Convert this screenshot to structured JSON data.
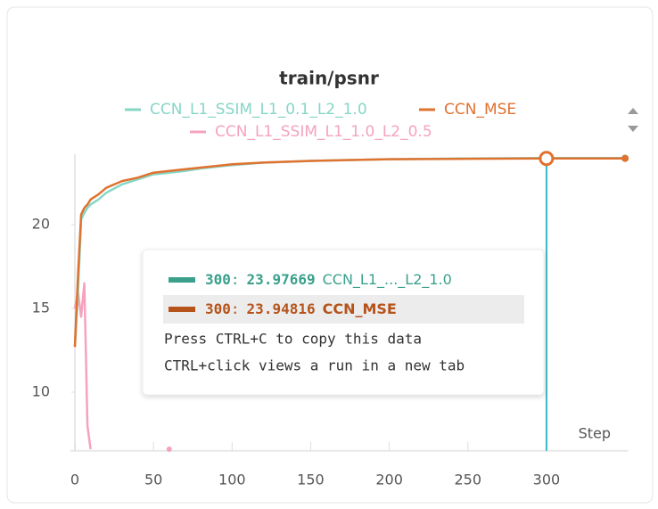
{
  "chart_data": {
    "type": "line",
    "title": "train/psnr",
    "x_label": "Step",
    "x": [
      0,
      2,
      4,
      6,
      8,
      10,
      15,
      20,
      30,
      40,
      50,
      60,
      70,
      80,
      100,
      120,
      150,
      200,
      250,
      300,
      340,
      350
    ],
    "series": [
      {
        "name": "CCN_L1_SSIM_L1_0.1_L2_1.0",
        "color": "#86d6c6",
        "values": [
          12.7,
          16.0,
          20.3,
          20.7,
          21.0,
          21.2,
          21.5,
          21.9,
          22.4,
          22.7,
          23.0,
          23.1,
          23.2,
          23.35,
          23.55,
          23.7,
          23.8,
          23.9,
          23.95,
          23.97669,
          23.97,
          23.97
        ]
      },
      {
        "name": "CCN_MSE",
        "color": "#e07230",
        "values": [
          12.7,
          17.0,
          20.6,
          21.0,
          21.2,
          21.5,
          21.8,
          22.2,
          22.6,
          22.8,
          23.1,
          23.2,
          23.3,
          23.4,
          23.6,
          23.7,
          23.8,
          23.9,
          23.93,
          23.94816,
          23.95,
          23.95
        ]
      },
      {
        "name": "CCN_L1_SSIM_L1_1.0_L2_0.5",
        "color": "#f5a3bd",
        "values": [
          15.0,
          16.0,
          14.5,
          16.5,
          8.0,
          6.6,
          null,
          null,
          null,
          null,
          null,
          6.6,
          null,
          null,
          null,
          null,
          null,
          null,
          null,
          null,
          null,
          null
        ]
      }
    ],
    "xlim": [
      -3,
      352
    ],
    "ylim": [
      6.5,
      24.2
    ],
    "xticks": [
      0,
      50,
      100,
      150,
      200,
      250,
      300
    ],
    "yticks": [
      10,
      15,
      20
    ],
    "grid": false,
    "tooltip": {
      "step": 300,
      "separator": ":",
      "labels": [
        "CCN_L1_..._L2_1.0",
        "CCN_MSE"
      ],
      "hints": [
        "Press CTRL+C to copy this data",
        "CTRL+click views a run in a new tab"
      ]
    }
  }
}
